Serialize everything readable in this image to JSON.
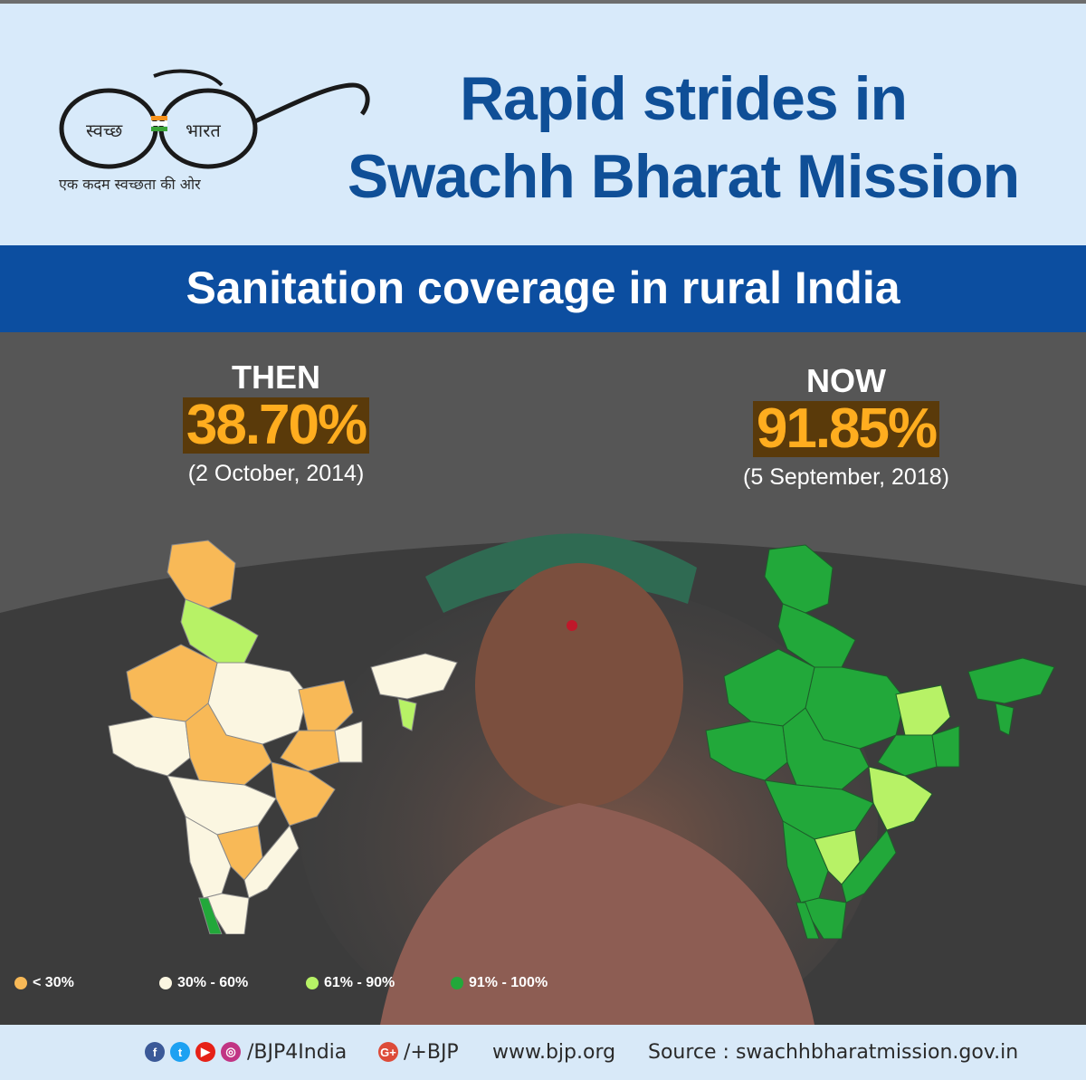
{
  "logo": {
    "left_text": "स्वच्छ",
    "right_text": "भारत",
    "tagline": "एक कदम स्वच्छता की ओर"
  },
  "header": {
    "title_line1": "Rapid strides in",
    "title_line2": "Swachh Bharat Mission"
  },
  "banner": {
    "subtitle": "Sanitation coverage in rural India"
  },
  "then": {
    "label": "THEN",
    "percent": "38.70%",
    "date": "(2 October, 2014)"
  },
  "now": {
    "label": "NOW",
    "percent": "91.85%",
    "date": "(5 September, 2018)"
  },
  "legend": [
    {
      "label": "< 30%",
      "color": "#f8b957"
    },
    {
      "label": "30% - 60%",
      "color": "#fbf6e1"
    },
    {
      "label": "61% - 90%",
      "color": "#b7f266"
    },
    {
      "label": "91% - 100%",
      "color": "#22a83a"
    }
  ],
  "footer": {
    "social_handle": "/BJP4India",
    "gplus_handle": "/+BJP",
    "website": "www.bjp.org",
    "source": "Source : swachhbharatmission.gov.in"
  },
  "colors": {
    "title_blue": "#0f4f97",
    "banner_blue": "#0c4ea0",
    "percent_orange": "#ffad1f",
    "percent_bg": "#5a3a0a"
  }
}
